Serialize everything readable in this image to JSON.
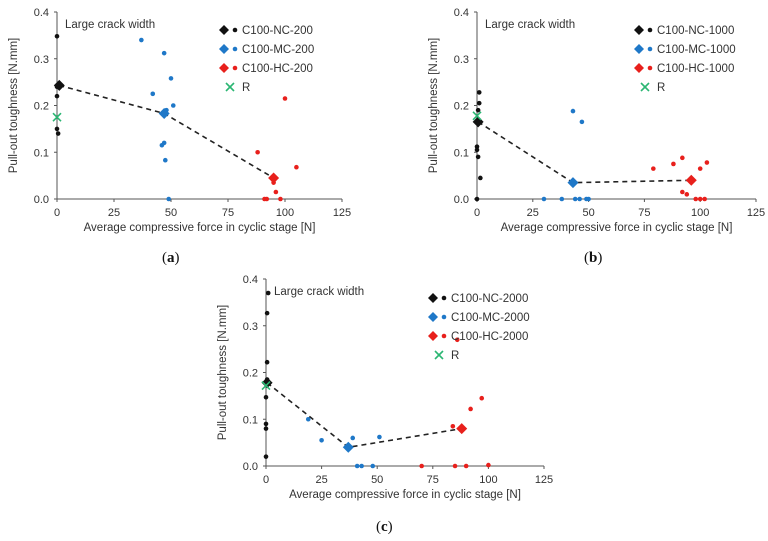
{
  "colors": {
    "NC": "#111111",
    "MC": "#1f78c8",
    "HC": "#e8201c",
    "R": "#2bb673",
    "trend": "#222222"
  },
  "chart_data": [
    {
      "type": "scatter",
      "panel_label": "a",
      "annotation": "Large crack width",
      "xlabel": "Average compressive force in cyclic stage [N]",
      "ylabel": "Pull-out toughness [N.mm]",
      "xlim": [
        0,
        125
      ],
      "ylim": [
        0,
        0.4
      ],
      "xticks": [
        "0",
        "25",
        "50",
        "75",
        "100",
        "125"
      ],
      "yticks": [
        "0.0",
        "0.1",
        "0.2",
        "0.3",
        "0.4"
      ],
      "legend_position": "top-right",
      "series": [
        {
          "name": "C100-NC-200",
          "group": "NC",
          "points": [
            [
              0,
              0.348
            ],
            [
              0,
              0.24
            ],
            [
              0,
              0.22
            ],
            [
              0,
              0.15
            ],
            [
              0.5,
              0.14
            ],
            [
              1,
              0.245
            ]
          ],
          "mean": [
            1,
            0.243
          ]
        },
        {
          "name": "C100-MC-200",
          "group": "MC",
          "points": [
            [
              37,
              0.34
            ],
            [
              42,
              0.225
            ],
            [
              46,
              0.115
            ],
            [
              47,
              0.312
            ],
            [
              47,
              0.12
            ],
            [
              47.5,
              0.083
            ],
            [
              48,
              0.19
            ],
            [
              49,
              0.0
            ],
            [
              50,
              0.258
            ],
            [
              51,
              0.2
            ]
          ],
          "mean": [
            47,
            0.183
          ]
        },
        {
          "name": "C100-HC-200",
          "group": "HC",
          "points": [
            [
              88,
              0.1
            ],
            [
              91,
              0.0
            ],
            [
              92,
              0.0
            ],
            [
              95,
              0.035
            ],
            [
              96,
              0.015
            ],
            [
              98,
              0.0
            ],
            [
              100,
              0.215
            ],
            [
              105,
              0.068
            ]
          ],
          "mean": [
            95,
            0.045
          ]
        },
        {
          "name": "R",
          "group": "R",
          "points": [],
          "mean": [
            0,
            0.175
          ]
        }
      ],
      "trend_order": [
        "NC",
        "MC",
        "HC"
      ]
    },
    {
      "type": "scatter",
      "panel_label": "b",
      "annotation": "Large crack width",
      "xlabel": "Average compressive force in cyclic stage [N]",
      "ylabel": "Pull-out toughness [N.mm]",
      "xlim": [
        0,
        125
      ],
      "ylim": [
        0,
        0.4
      ],
      "xticks": [
        "0",
        "25",
        "50",
        "75",
        "100",
        "125"
      ],
      "yticks": [
        "0.0",
        "0.1",
        "0.2",
        "0.3",
        "0.4"
      ],
      "legend_position": "top-right",
      "series": [
        {
          "name": "C100-NC-1000",
          "group": "NC",
          "points": [
            [
              1,
              0.228
            ],
            [
              1,
              0.205
            ],
            [
              0.5,
              0.19
            ],
            [
              0,
              0.112
            ],
            [
              0,
              0.105
            ],
            [
              0.5,
              0.09
            ],
            [
              1.5,
              0.045
            ],
            [
              0,
              0.0
            ]
          ],
          "mean": [
            0.5,
            0.165
          ]
        },
        {
          "name": "C100-MC-1000",
          "group": "MC",
          "points": [
            [
              30,
              0.0
            ],
            [
              38,
              0.0
            ],
            [
              43,
              0.188
            ],
            [
              44,
              0.0
            ],
            [
              46,
              0.0
            ],
            [
              47,
              0.165
            ],
            [
              49,
              0.0
            ],
            [
              50,
              0.0
            ]
          ],
          "mean": [
            43,
            0.035
          ]
        },
        {
          "name": "C100-HC-1000",
          "group": "HC",
          "points": [
            [
              79,
              0.065
            ],
            [
              88,
              0.075
            ],
            [
              92,
              0.088
            ],
            [
              92,
              0.015
            ],
            [
              94,
              0.01
            ],
            [
              98,
              0.0
            ],
            [
              100,
              0.065
            ],
            [
              100,
              0.0
            ],
            [
              102,
              0.0
            ],
            [
              103,
              0.078
            ]
          ],
          "mean": [
            96,
            0.04
          ]
        },
        {
          "name": "R",
          "group": "R",
          "points": [],
          "mean": [
            0,
            0.178
          ]
        }
      ],
      "trend_order": [
        "NC",
        "MC",
        "HC"
      ]
    },
    {
      "type": "scatter",
      "panel_label": "c",
      "annotation": "Large crack width",
      "xlabel": "Average compressive force in cyclic stage [N]",
      "ylabel": "Pull-out toughness [N.mm]",
      "xlim": [
        0,
        125
      ],
      "ylim": [
        0,
        0.4
      ],
      "xticks": [
        "0",
        "25",
        "50",
        "75",
        "100",
        "125"
      ],
      "yticks": [
        "0.0",
        "0.1",
        "0.2",
        "0.3",
        "0.4"
      ],
      "legend_position": "top-right",
      "series": [
        {
          "name": "C100-NC-2000",
          "group": "NC",
          "points": [
            [
              1,
              0.37
            ],
            [
              0.5,
              0.327
            ],
            [
              0.5,
              0.222
            ],
            [
              0.5,
              0.185
            ],
            [
              0,
              0.147
            ],
            [
              0,
              0.09
            ],
            [
              0,
              0.08
            ],
            [
              0,
              0.02
            ]
          ],
          "mean": [
            0.5,
            0.178
          ]
        },
        {
          "name": "C100-MC-2000",
          "group": "MC",
          "points": [
            [
              19,
              0.1
            ],
            [
              25,
              0.055
            ],
            [
              39,
              0.06
            ],
            [
              41,
              0.0
            ],
            [
              43,
              0.0
            ],
            [
              48,
              0.0
            ],
            [
              51,
              0.062
            ]
          ],
          "mean": [
            37,
            0.04
          ]
        },
        {
          "name": "C100-HC-2000",
          "group": "HC",
          "points": [
            [
              70,
              0.0
            ],
            [
              84,
              0.085
            ],
            [
              85,
              0.0
            ],
            [
              86,
              0.27
            ],
            [
              90,
              0.0
            ],
            [
              92,
              0.122
            ],
            [
              97,
              0.145
            ],
            [
              100,
              0.002
            ]
          ],
          "mean": [
            88,
            0.08
          ]
        },
        {
          "name": "R",
          "group": "R",
          "points": [],
          "mean": [
            0,
            0.172
          ]
        }
      ],
      "trend_order": [
        "NC",
        "MC",
        "HC"
      ]
    }
  ]
}
